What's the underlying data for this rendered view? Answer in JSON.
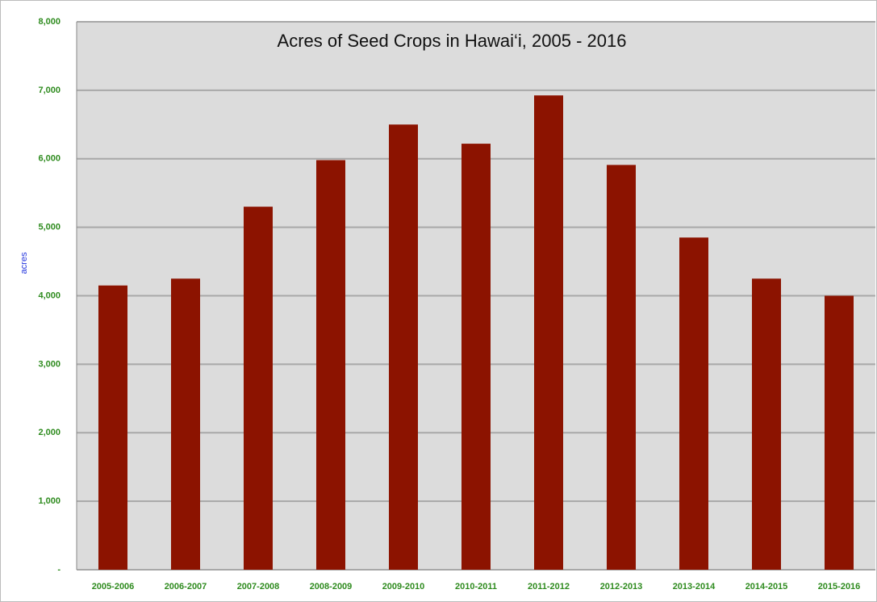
{
  "chart_data": {
    "type": "bar",
    "title": "Acres of Seed Crops in Hawai‘i, 2005 - 2016",
    "y_label": "acres",
    "categories": [
      "2005-2006",
      "2006-2007",
      "2007-2008",
      "2008-2009",
      "2009-2010",
      "2010-2011",
      "2011-2012",
      "2012-2013",
      "2013-2014",
      "2014-2015",
      "2015-2016"
    ],
    "values": [
      4150,
      4250,
      5300,
      5980,
      6500,
      6220,
      6925,
      5910,
      4850,
      4250,
      4000
    ],
    "color": "#8c1300",
    "ylim": [
      0,
      8000
    ],
    "yticks": [
      {
        "value": 0,
        "label": "-"
      },
      {
        "value": 1000,
        "label": "1,000"
      },
      {
        "value": 2000,
        "label": "2,000"
      },
      {
        "value": 3000,
        "label": "3,000"
      },
      {
        "value": 4000,
        "label": "4,000"
      },
      {
        "value": 5000,
        "label": "5,000"
      },
      {
        "value": 6000,
        "label": "6,000"
      },
      {
        "value": 7000,
        "label": "7,000"
      },
      {
        "value": 8000,
        "label": "8,000"
      }
    ],
    "grid": true
  }
}
